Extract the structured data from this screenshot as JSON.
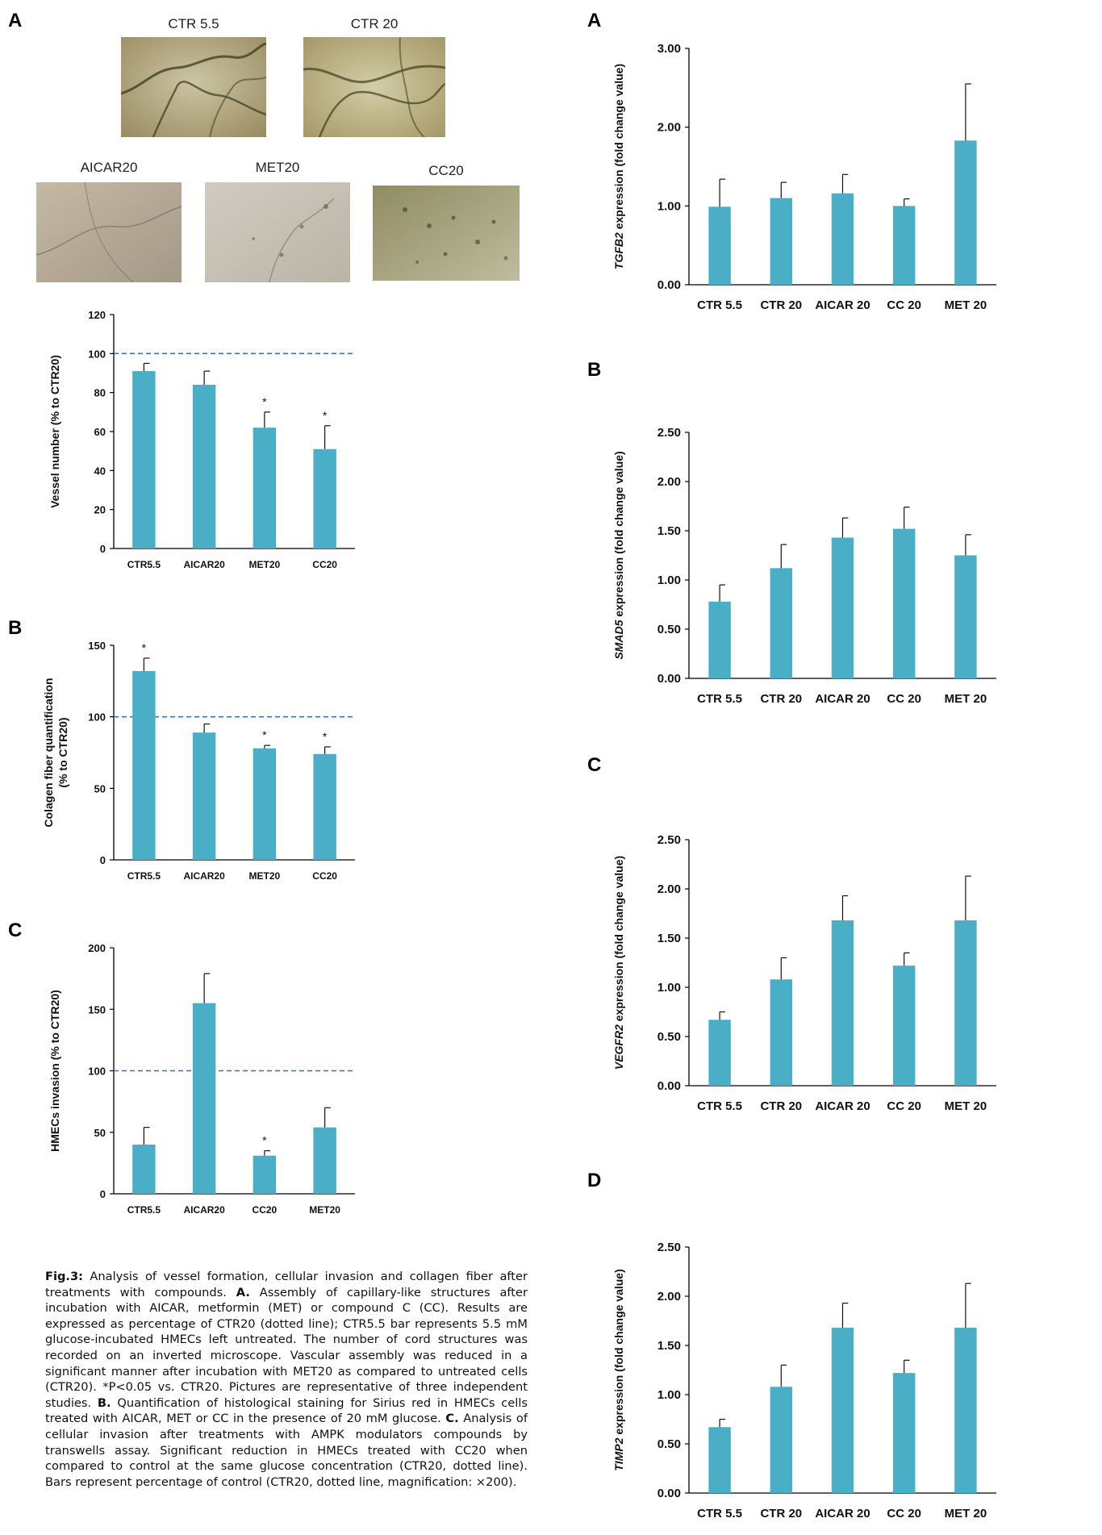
{
  "left": {
    "panel_a": {
      "letter": "A"
    },
    "panel_b": {
      "letter": "B"
    },
    "panel_c": {
      "letter": "C"
    }
  },
  "right": {
    "panel_a": {
      "letter": "A"
    },
    "panel_b": {
      "letter": "B"
    },
    "panel_c": {
      "letter": "C"
    },
    "panel_d": {
      "letter": "D"
    }
  },
  "micrographs": [
    {
      "label": "CTR 5.5"
    },
    {
      "label": "CTR 20"
    },
    {
      "label": "AICAR20"
    },
    {
      "label": "MET20"
    },
    {
      "label": "CC20"
    }
  ],
  "colors": {
    "bar": "#4aaec6",
    "dotted": "#3a6fb5",
    "axis": "#000000"
  },
  "chart_data": [
    {
      "id": "vessel",
      "type": "bar",
      "categories": [
        "CTR5.5",
        "AICAR20",
        "MET20",
        "CC20"
      ],
      "values": [
        91,
        84,
        62,
        51
      ],
      "errors": [
        4,
        7,
        8,
        12
      ],
      "significance": [
        "",
        "",
        "*",
        "*"
      ],
      "ylabel": "Vessel number (% to CTR20)",
      "ylim": [
        0,
        120
      ],
      "yticks": [
        "0",
        "20",
        "40",
        "60",
        "80",
        "100",
        "120"
      ],
      "reference_line": 100
    },
    {
      "id": "collagen",
      "type": "bar",
      "categories": [
        "CTR5.5",
        "AICAR20",
        "MET20",
        "CC20"
      ],
      "values": [
        132,
        89,
        78,
        74
      ],
      "errors": [
        9,
        6,
        2,
        5
      ],
      "significance": [
        "*",
        "",
        "*",
        "*"
      ],
      "ylabel_lines": [
        "Colagen fiber quantification",
        "(% to CTR20)"
      ],
      "ylim": [
        0,
        150
      ],
      "yticks": [
        "0",
        "50",
        "100",
        "150"
      ],
      "reference_line": 100
    },
    {
      "id": "invasion",
      "type": "bar",
      "categories": [
        "CTR5.5",
        "AICAR20",
        "CC20",
        "MET20"
      ],
      "values": [
        40,
        155,
        31,
        54
      ],
      "errors": [
        14,
        24,
        4,
        16
      ],
      "significance": [
        "",
        "",
        "*",
        ""
      ],
      "ylabel": "HMECs invasion (% to CTR20)",
      "ylim": [
        0,
        200
      ],
      "yticks": [
        "0",
        "50",
        "100",
        "150",
        "200"
      ],
      "reference_line": 100
    },
    {
      "id": "tgfb2",
      "type": "bar",
      "categories": [
        "CTR 5.5",
        "CTR 20",
        "AICAR 20",
        "CC 20",
        "MET 20"
      ],
      "values": [
        0.99,
        1.1,
        1.16,
        1.0,
        1.83
      ],
      "errors": [
        0.35,
        0.2,
        0.24,
        0.09,
        0.72
      ],
      "ylabel_gene": "TGFB2",
      "ylabel_rest": " expression (fold change value)",
      "ylim": [
        0,
        3
      ],
      "yticks": [
        "0.00",
        "1.00",
        "2.00",
        "3.00"
      ]
    },
    {
      "id": "smad5",
      "type": "bar",
      "categories": [
        "CTR 5.5",
        "CTR 20",
        "AICAR 20",
        "CC 20",
        "MET 20"
      ],
      "values": [
        0.78,
        1.12,
        1.43,
        1.52,
        1.25
      ],
      "errors": [
        0.17,
        0.24,
        0.2,
        0.22,
        0.21
      ],
      "ylabel_gene": "SMAD5",
      "ylabel_rest": " expression (fold change value)",
      "ylim": [
        0,
        2.5
      ],
      "yticks": [
        "0.00",
        "0.50",
        "1.00",
        "1.50",
        "2.00",
        "2.50"
      ]
    },
    {
      "id": "vegfr2",
      "type": "bar",
      "categories": [
        "CTR 5.5",
        "CTR 20",
        "AICAR 20",
        "CC 20",
        "MET 20"
      ],
      "values": [
        0.67,
        1.08,
        1.68,
        1.22,
        1.68
      ],
      "errors": [
        0.08,
        0.22,
        0.25,
        0.13,
        0.45
      ],
      "ylabel_gene": "VEGFR2",
      "ylabel_rest": " expression (fold change value)",
      "ylim": [
        0,
        2.5
      ],
      "yticks": [
        "0.00",
        "0.50",
        "1.00",
        "1.50",
        "2.00",
        "2.50"
      ]
    },
    {
      "id": "timp2",
      "type": "bar",
      "categories": [
        "CTR 5.5",
        "CTR 20",
        "AICAR 20",
        "CC 20",
        "MET 20"
      ],
      "values": [
        0.67,
        1.08,
        1.68,
        1.22,
        1.68
      ],
      "errors": [
        0.08,
        0.22,
        0.25,
        0.13,
        0.45
      ],
      "ylabel_gene": "TIMP2",
      "ylabel_rest": " expression (fold change value)",
      "ylim": [
        0,
        2.5
      ],
      "yticks": [
        "0.00",
        "0.50",
        "1.00",
        "1.50",
        "2.00",
        "2.50"
      ]
    }
  ],
  "caption": {
    "fig": "Fig.3:",
    "t1": " Analysis of vessel formation, cellular invasion and collagen fiber after treatments with compounds. ",
    "a": "A.",
    "t2": " Assembly of capillary-like structures after incubation with AICAR, metformin (MET) or compound C (CC). Results are expressed as percentage of CTR20 (dotted line); CTR5.5 bar represents 5.5 mM glucose-incubated HMECs left untreated. The number of cord structures was recorded on an inverted microscope. Vascular assembly was reduced in a significant manner after incubation with MET20 as compared to untreated cells (CTR20). *P<0.05 vs. CTR20. Pictures are representative of three independent studies. ",
    "b": "B.",
    "t3": " Quantification of histological staining for Sirius red in HMECs cells treated with AICAR, MET or CC in the presence of 20 mM glucose. ",
    "c": "C.",
    "t4": " Analysis of cellular invasion after treatments with AMPK modulators compounds by transwells assay. Significant reduction in HMECs treated with CC20 when compared to control at the same glucose concentration (CTR20, dotted line). Bars represent percentage of control (CTR20, dotted line, magnification: ×200)."
  }
}
